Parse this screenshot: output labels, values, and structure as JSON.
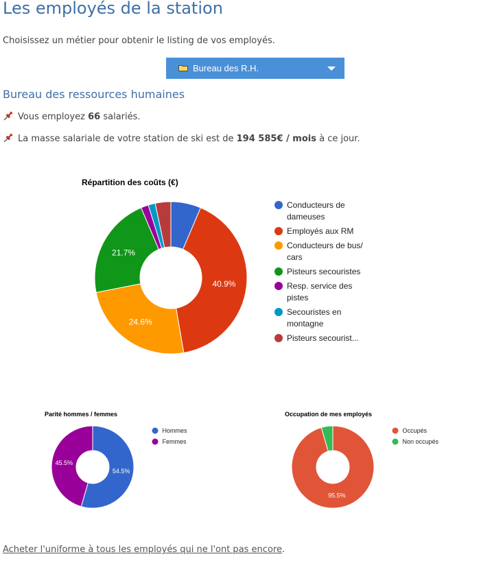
{
  "page": {
    "title": "Les employés de la station",
    "intro": "Choisissez un métier pour obtenir le listing de vos employés."
  },
  "job_select": {
    "selected": "Bureau des R.H.",
    "icon": "folder-icon"
  },
  "section": {
    "title": "Bureau des ressources humaines"
  },
  "summary": {
    "employees_prefix": "Vous employez",
    "employees_count": "66",
    "employees_suffix": "salariés.",
    "payroll_prefix": "La masse salariale de votre station de ski est de",
    "payroll_value": "194 585€ / mois",
    "payroll_suffix": "à ce jour.",
    "icon": "pushpin-icon"
  },
  "chart_data": [
    {
      "type": "pie",
      "donut": true,
      "title": "Répartition des coûts (€)",
      "legend_position": "right",
      "slices": [
        {
          "label": "Conducteurs de dameuses",
          "value": 6.4,
          "display": "",
          "color": "#3366cc"
        },
        {
          "label": "Employés aux RM",
          "value": 40.9,
          "display": "40.9%",
          "color": "#dc3912"
        },
        {
          "label": "Conducteurs de bus/ cars",
          "value": 24.6,
          "display": "24.6%",
          "color": "#ff9900"
        },
        {
          "label": "Pisteurs secouristes",
          "value": 21.7,
          "display": "21.7%",
          "color": "#109618"
        },
        {
          "label": "Resp. service des pistes",
          "value": 1.6,
          "display": "",
          "color": "#990099"
        },
        {
          "label": "Secouristes en montagne",
          "value": 1.5,
          "display": "",
          "color": "#0099c6"
        },
        {
          "label": "Pisteurs secourist...",
          "value": 3.3,
          "display": "",
          "color": "#b83b3b"
        }
      ]
    },
    {
      "type": "pie",
      "donut": true,
      "title": "Parité hommes / femmes",
      "legend_position": "right",
      "slices": [
        {
          "label": "Hommes",
          "value": 54.5,
          "display": "54.5%",
          "color": "#3366cc"
        },
        {
          "label": "Femmes",
          "value": 45.5,
          "display": "45.5%",
          "color": "#990099"
        }
      ]
    },
    {
      "type": "pie",
      "donut": true,
      "title": "Occupation de mes employés",
      "legend_position": "right",
      "slices": [
        {
          "label": "Occupés",
          "value": 95.5,
          "display": "95.5%",
          "color": "#e05538"
        },
        {
          "label": "Non occupés",
          "value": 4.5,
          "display": "",
          "color": "#33bb55"
        }
      ]
    }
  ],
  "footer": {
    "link_text": "Acheter l'uniforme à tous les employés qui ne l'ont pas encore",
    "trailing": "."
  }
}
